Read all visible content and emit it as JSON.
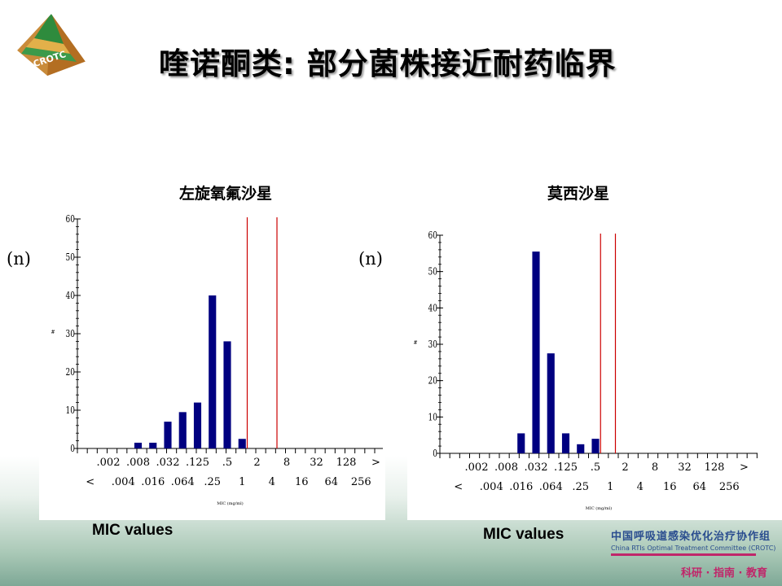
{
  "slide": {
    "title": "喹诺酮类: 部分菌株接近耐药临界",
    "logo_text": "CROTC",
    "org_name_cn": "中国呼吸道感染优化治疗协作组",
    "org_name_en": "China RTIs Optimal Treatment Committee (CROTC)",
    "motto": "科研 · 指南 · 教育",
    "n_label": "(n)",
    "mic_label": "MIC values"
  },
  "chart_data": [
    {
      "type": "bar",
      "title": "左旋氧氟沙星",
      "xlabel": "MIC (mg/ml)",
      "ylabel": "#",
      "ylim": [
        0,
        60
      ],
      "yticks": [
        0,
        10,
        20,
        30,
        40,
        50,
        60
      ],
      "upper_tick_labels": [
        ".002",
        ".008",
        ".032",
        ".125",
        ".5",
        "2",
        "8",
        "32",
        "128",
        ">"
      ],
      "lower_tick_labels": [
        "<",
        ".004",
        ".016",
        ".064",
        ".25",
        "1",
        "4",
        "16",
        "64",
        "256"
      ],
      "categories": [
        ".008",
        ".016",
        ".032",
        ".064",
        ".125",
        ".25",
        ".5",
        "1"
      ],
      "values": [
        1.5,
        1.5,
        7,
        9.5,
        12,
        40,
        28,
        2.5
      ],
      "breakpoint_lines": [
        "2",
        "8"
      ],
      "bar_color": "#000080",
      "line_color": "#cc0000"
    },
    {
      "type": "bar",
      "title": "莫西沙星",
      "xlabel": "MIC (mg/ml)",
      "ylabel": "#",
      "ylim": [
        0,
        60
      ],
      "yticks": [
        0,
        10,
        20,
        30,
        40,
        50,
        60
      ],
      "upper_tick_labels": [
        ".002",
        ".008",
        ".032",
        ".125",
        ".5",
        "2",
        "8",
        "32",
        "128",
        ">"
      ],
      "lower_tick_labels": [
        "<",
        ".004",
        ".016",
        ".064",
        ".25",
        "1",
        "4",
        "16",
        "64",
        "256"
      ],
      "categories": [
        ".016",
        ".032",
        ".064",
        ".125",
        ".25",
        ".5"
      ],
      "values": [
        5.5,
        55.5,
        27.5,
        5.5,
        2.5,
        4
      ],
      "breakpoint_lines": [
        "1",
        "2"
      ],
      "bar_color": "#000080",
      "line_color": "#cc0000"
    }
  ]
}
